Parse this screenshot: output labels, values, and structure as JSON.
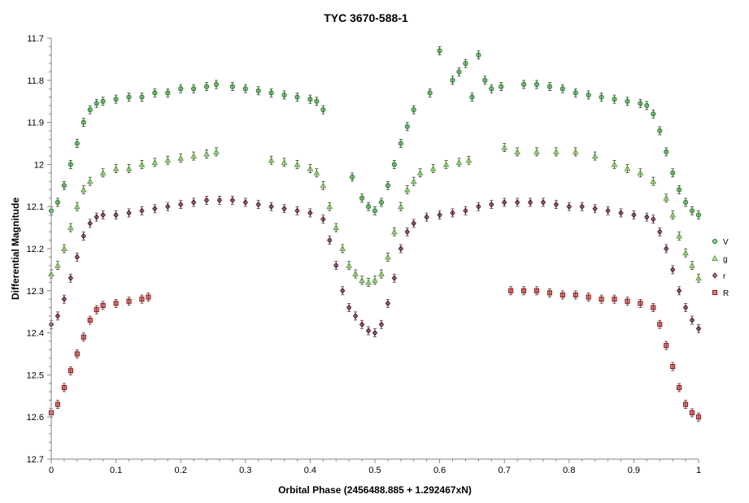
{
  "chart_data": {
    "type": "scatter",
    "title": "TYC 3670-588-1",
    "xlabel": "Orbital Phase (2456488.885 + 1.292467xN)",
    "ylabel": "Differential Magnitude",
    "xlim": [
      0,
      1
    ],
    "ylim": [
      11.7,
      12.7
    ],
    "y_inverted": true,
    "x_ticks": [
      "0",
      "0.1",
      "0.2",
      "0.3",
      "0.4",
      "0.5",
      "0.6",
      "0.7",
      "0.8",
      "0.9",
      "1"
    ],
    "y_ticks": [
      "11.7",
      "11.8",
      "11.9",
      "12",
      "12.1",
      "12.2",
      "12.3",
      "12.4",
      "12.5",
      "12.6",
      "12.7"
    ],
    "grid": false,
    "error_bars": true,
    "legend_position": "right",
    "series": [
      {
        "name": "V",
        "marker": "circle",
        "color": "#2aa52a",
        "edge_color": "#137213",
        "points": [
          [
            0.0,
            12.11
          ],
          [
            0.01,
            12.09
          ],
          [
            0.02,
            12.05
          ],
          [
            0.03,
            12.0
          ],
          [
            0.04,
            11.95
          ],
          [
            0.05,
            11.9
          ],
          [
            0.06,
            11.87
          ],
          [
            0.07,
            11.855
          ],
          [
            0.08,
            11.85
          ],
          [
            0.1,
            11.845
          ],
          [
            0.12,
            11.84
          ],
          [
            0.14,
            11.84
          ],
          [
            0.16,
            11.83
          ],
          [
            0.18,
            11.83
          ],
          [
            0.2,
            11.82
          ],
          [
            0.22,
            11.82
          ],
          [
            0.24,
            11.815
          ],
          [
            0.255,
            11.81
          ],
          [
            0.28,
            11.815
          ],
          [
            0.3,
            11.82
          ],
          [
            0.32,
            11.825
          ],
          [
            0.34,
            11.83
          ],
          [
            0.36,
            11.835
          ],
          [
            0.38,
            11.84
          ],
          [
            0.4,
            11.845
          ],
          [
            0.41,
            11.85
          ],
          [
            0.42,
            11.87
          ],
          [
            0.465,
            12.03
          ],
          [
            0.48,
            12.08
          ],
          [
            0.49,
            12.1
          ],
          [
            0.5,
            12.11
          ],
          [
            0.51,
            12.09
          ],
          [
            0.52,
            12.05
          ],
          [
            0.53,
            12.0
          ],
          [
            0.54,
            11.95
          ],
          [
            0.55,
            11.91
          ],
          [
            0.56,
            11.87
          ],
          [
            0.585,
            11.83
          ],
          [
            0.6,
            11.73
          ],
          [
            0.62,
            11.8
          ],
          [
            0.63,
            11.78
          ],
          [
            0.64,
            11.76
          ],
          [
            0.65,
            11.84
          ],
          [
            0.66,
            11.74
          ],
          [
            0.67,
            11.8
          ],
          [
            0.68,
            11.82
          ],
          [
            0.695,
            11.815
          ],
          [
            0.73,
            11.81
          ],
          [
            0.75,
            11.81
          ],
          [
            0.77,
            11.815
          ],
          [
            0.79,
            11.82
          ],
          [
            0.81,
            11.83
          ],
          [
            0.83,
            11.835
          ],
          [
            0.85,
            11.84
          ],
          [
            0.87,
            11.845
          ],
          [
            0.89,
            11.85
          ],
          [
            0.91,
            11.855
          ],
          [
            0.92,
            11.86
          ],
          [
            0.93,
            11.88
          ],
          [
            0.94,
            11.92
          ],
          [
            0.95,
            11.97
          ],
          [
            0.96,
            12.02
          ],
          [
            0.97,
            12.06
          ],
          [
            0.98,
            12.09
          ],
          [
            0.99,
            12.11
          ],
          [
            1.0,
            12.12
          ]
        ]
      },
      {
        "name": "g",
        "marker": "triangle",
        "color": "#8fd16a",
        "edge_color": "#4d9a2a",
        "points": [
          [
            0.0,
            12.26
          ],
          [
            0.01,
            12.24
          ],
          [
            0.02,
            12.2
          ],
          [
            0.03,
            12.15
          ],
          [
            0.04,
            12.1
          ],
          [
            0.05,
            12.06
          ],
          [
            0.06,
            12.04
          ],
          [
            0.08,
            12.02
          ],
          [
            0.1,
            12.01
          ],
          [
            0.12,
            12.01
          ],
          [
            0.14,
            12.0
          ],
          [
            0.16,
            11.995
          ],
          [
            0.18,
            11.99
          ],
          [
            0.2,
            11.985
          ],
          [
            0.22,
            11.98
          ],
          [
            0.24,
            11.975
          ],
          [
            0.255,
            11.97
          ],
          [
            0.34,
            11.99
          ],
          [
            0.36,
            11.995
          ],
          [
            0.38,
            12.0
          ],
          [
            0.4,
            12.01
          ],
          [
            0.41,
            12.02
          ],
          [
            0.42,
            12.05
          ],
          [
            0.43,
            12.1
          ],
          [
            0.44,
            12.15
          ],
          [
            0.45,
            12.2
          ],
          [
            0.46,
            12.24
          ],
          [
            0.47,
            12.26
          ],
          [
            0.48,
            12.275
          ],
          [
            0.49,
            12.28
          ],
          [
            0.5,
            12.275
          ],
          [
            0.51,
            12.26
          ],
          [
            0.52,
            12.22
          ],
          [
            0.53,
            12.16
          ],
          [
            0.54,
            12.1
          ],
          [
            0.55,
            12.06
          ],
          [
            0.56,
            12.04
          ],
          [
            0.57,
            12.02
          ],
          [
            0.59,
            12.01
          ],
          [
            0.61,
            12.0
          ],
          [
            0.63,
            11.995
          ],
          [
            0.645,
            11.99
          ],
          [
            0.7,
            11.96
          ],
          [
            0.72,
            11.97
          ],
          [
            0.75,
            11.97
          ],
          [
            0.78,
            11.97
          ],
          [
            0.81,
            11.97
          ],
          [
            0.84,
            11.98
          ],
          [
            0.87,
            12.0
          ],
          [
            0.89,
            12.01
          ],
          [
            0.91,
            12.02
          ],
          [
            0.93,
            12.04
          ],
          [
            0.95,
            12.08
          ],
          [
            0.96,
            12.12
          ],
          [
            0.97,
            12.17
          ],
          [
            0.98,
            12.21
          ],
          [
            0.99,
            12.24
          ],
          [
            1.0,
            12.27
          ]
        ]
      },
      {
        "name": "r",
        "marker": "diamond",
        "color": "#6b0f3a",
        "edge_color": "#4a0727",
        "points": [
          [
            0.0,
            12.38
          ],
          [
            0.01,
            12.36
          ],
          [
            0.02,
            12.32
          ],
          [
            0.03,
            12.27
          ],
          [
            0.04,
            12.22
          ],
          [
            0.05,
            12.17
          ],
          [
            0.06,
            12.14
          ],
          [
            0.07,
            12.125
          ],
          [
            0.08,
            12.12
          ],
          [
            0.1,
            12.12
          ],
          [
            0.12,
            12.115
          ],
          [
            0.14,
            12.11
          ],
          [
            0.16,
            12.105
          ],
          [
            0.18,
            12.1
          ],
          [
            0.2,
            12.095
          ],
          [
            0.22,
            12.09
          ],
          [
            0.24,
            12.085
          ],
          [
            0.26,
            12.085
          ],
          [
            0.28,
            12.085
          ],
          [
            0.3,
            12.09
          ],
          [
            0.32,
            12.095
          ],
          [
            0.34,
            12.1
          ],
          [
            0.36,
            12.105
          ],
          [
            0.38,
            12.11
          ],
          [
            0.4,
            12.115
          ],
          [
            0.42,
            12.13
          ],
          [
            0.43,
            12.18
          ],
          [
            0.44,
            12.24
          ],
          [
            0.45,
            12.3
          ],
          [
            0.46,
            12.34
          ],
          [
            0.47,
            12.36
          ],
          [
            0.48,
            12.38
          ],
          [
            0.49,
            12.395
          ],
          [
            0.5,
            12.4
          ],
          [
            0.51,
            12.38
          ],
          [
            0.52,
            12.33
          ],
          [
            0.53,
            12.27
          ],
          [
            0.54,
            12.2
          ],
          [
            0.55,
            12.16
          ],
          [
            0.56,
            12.14
          ],
          [
            0.58,
            12.125
          ],
          [
            0.6,
            12.12
          ],
          [
            0.62,
            12.115
          ],
          [
            0.64,
            12.11
          ],
          [
            0.66,
            12.1
          ],
          [
            0.68,
            12.095
          ],
          [
            0.7,
            12.09
          ],
          [
            0.72,
            12.09
          ],
          [
            0.74,
            12.09
          ],
          [
            0.76,
            12.09
          ],
          [
            0.78,
            12.095
          ],
          [
            0.8,
            12.1
          ],
          [
            0.82,
            12.1
          ],
          [
            0.84,
            12.105
          ],
          [
            0.86,
            12.11
          ],
          [
            0.88,
            12.115
          ],
          [
            0.9,
            12.12
          ],
          [
            0.92,
            12.125
          ],
          [
            0.93,
            12.13
          ],
          [
            0.94,
            12.16
          ],
          [
            0.95,
            12.2
          ],
          [
            0.96,
            12.25
          ],
          [
            0.97,
            12.3
          ],
          [
            0.98,
            12.34
          ],
          [
            0.99,
            12.37
          ],
          [
            1.0,
            12.39
          ]
        ]
      },
      {
        "name": "R",
        "marker": "square",
        "color": "#c81414",
        "edge_color": "#8a0a0a",
        "points": [
          [
            0.0,
            12.59
          ],
          [
            0.01,
            12.57
          ],
          [
            0.02,
            12.53
          ],
          [
            0.03,
            12.49
          ],
          [
            0.04,
            12.45
          ],
          [
            0.05,
            12.41
          ],
          [
            0.06,
            12.37
          ],
          [
            0.07,
            12.345
          ],
          [
            0.08,
            12.335
          ],
          [
            0.1,
            12.33
          ],
          [
            0.12,
            12.325
          ],
          [
            0.14,
            12.32
          ],
          [
            0.15,
            12.315
          ],
          [
            0.71,
            12.3
          ],
          [
            0.73,
            12.3
          ],
          [
            0.75,
            12.3
          ],
          [
            0.77,
            12.305
          ],
          [
            0.79,
            12.31
          ],
          [
            0.81,
            12.31
          ],
          [
            0.83,
            12.315
          ],
          [
            0.85,
            12.32
          ],
          [
            0.87,
            12.32
          ],
          [
            0.89,
            12.325
          ],
          [
            0.91,
            12.33
          ],
          [
            0.93,
            12.34
          ],
          [
            0.94,
            12.38
          ],
          [
            0.95,
            12.43
          ],
          [
            0.96,
            12.48
          ],
          [
            0.97,
            12.53
          ],
          [
            0.98,
            12.57
          ],
          [
            0.99,
            12.59
          ],
          [
            1.0,
            12.6
          ]
        ]
      }
    ]
  }
}
